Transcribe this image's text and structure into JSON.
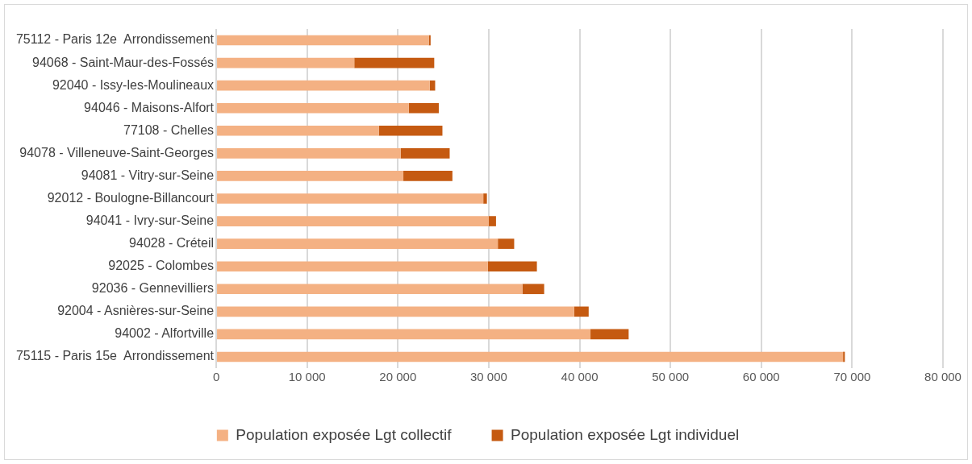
{
  "chart_data": {
    "type": "bar",
    "orientation": "horizontal",
    "stacked": true,
    "categories": [
      "75112 - Paris 12e  Arrondissement",
      "94068 - Saint-Maur-des-Fossés",
      "92040 - Issy-les-Moulineaux",
      "94046 - Maisons-Alfort",
      "77108 - Chelles",
      "94078 - Villeneuve-Saint-Georges",
      "94081 - Vitry-sur-Seine",
      "92012 - Boulogne-Billancourt",
      "94041 - Ivry-sur-Seine",
      "94028 - Créteil",
      "92025 - Colombes",
      "92036 - Gennevilliers",
      "92004 - Asnières-sur-Seine",
      "94002 - Alfortville",
      "75115 - Paris 15e  Arrondissement"
    ],
    "series": [
      {
        "name": "Population exposée Lgt collectif",
        "color": "#f4b183",
        "values": [
          23400,
          15200,
          23500,
          21200,
          17900,
          20300,
          20600,
          29400,
          30000,
          31000,
          29900,
          33700,
          39400,
          41200,
          69000
        ]
      },
      {
        "name": "Population exposée Lgt individuel",
        "color": "#c55a11",
        "values": [
          200,
          8800,
          600,
          3300,
          7000,
          5400,
          5400,
          400,
          800,
          1800,
          5400,
          2400,
          1600,
          4200,
          200
        ]
      }
    ],
    "xlim": [
      0,
      80000
    ],
    "xticks": [
      {
        "value": 0,
        "label": "0"
      },
      {
        "value": 10000,
        "label": "10 000"
      },
      {
        "value": 20000,
        "label": "20 000"
      },
      {
        "value": 30000,
        "label": "30 000"
      },
      {
        "value": 40000,
        "label": "40 000"
      },
      {
        "value": 50000,
        "label": "50 000"
      },
      {
        "value": 60000,
        "label": "60 000"
      },
      {
        "value": 70000,
        "label": "70 000"
      },
      {
        "value": 80000,
        "label": "80 000"
      }
    ],
    "grid": "x",
    "legend": "bottom"
  }
}
